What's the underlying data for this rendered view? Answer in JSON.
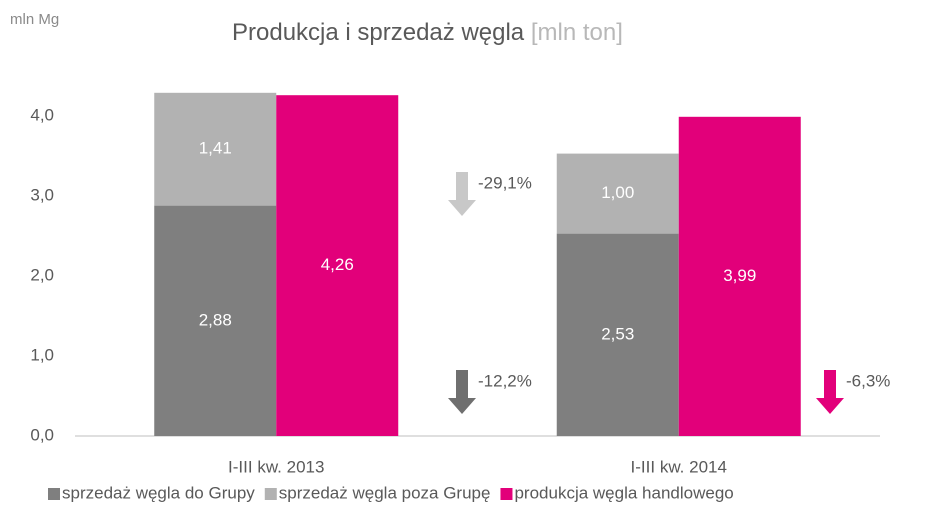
{
  "chart_data": {
    "type": "bar",
    "title": "Produkcja i sprzedaż węgla",
    "title_unit": "[mln ton]",
    "y_unit": "mln Mg",
    "categories": [
      "I-III kw. 2013",
      "I-III kw. 2014"
    ],
    "series": [
      {
        "name": "sprzedaż węgla do Grupy",
        "color": "#7f7f7f",
        "stacked": true,
        "values": [
          2.88,
          2.53
        ],
        "value_labels": [
          "2,88",
          "2,53"
        ]
      },
      {
        "name": "sprzedaż węgla poza Grupę",
        "color": "#b2b2b2",
        "stacked": true,
        "values": [
          1.41,
          1.0
        ],
        "value_labels": [
          "1,41",
          "1,00"
        ]
      },
      {
        "name": "produkcja węgla handlowego",
        "color": "#e2007a",
        "stacked": false,
        "values": [
          4.26,
          3.99
        ],
        "value_labels": [
          "4,26",
          "3,99"
        ]
      }
    ],
    "ylim": [
      0,
      4.5
    ],
    "yticks": [
      {
        "value": 0,
        "label": "0,0"
      },
      {
        "value": 1,
        "label": "1,0"
      },
      {
        "value": 2,
        "label": "2,0"
      },
      {
        "value": 3,
        "label": "3,0"
      },
      {
        "value": 4,
        "label": "4,0"
      }
    ],
    "grid": false,
    "legend": "bottom",
    "annotations": [
      {
        "text": "-29,1%",
        "color": "#c8c8c8"
      },
      {
        "text": "-12,2%",
        "color": "#6f6f6f"
      },
      {
        "text": "-6,3%",
        "color": "#e2007a"
      }
    ]
  }
}
